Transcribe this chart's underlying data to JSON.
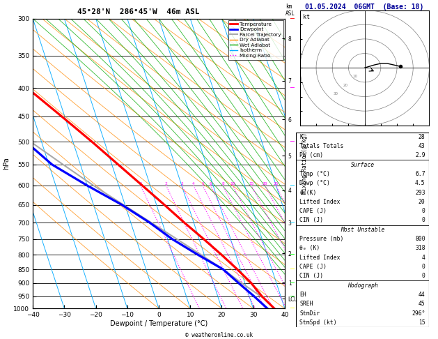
{
  "title_center": "45°28'N  286°45'W  46m ASL",
  "title_right": "01.05.2024  06GMT  (Base: 18)",
  "xlabel": "Dewpoint / Temperature (°C)",
  "xmin": -40,
  "xmax": 40,
  "pmin": 300,
  "pmax": 1000,
  "skew": 30.0,
  "temp_color": "#ff0000",
  "dewp_color": "#0000ff",
  "parcel_color": "#aaaaaa",
  "dry_adiabat_color": "#ff8800",
  "wet_adiabat_color": "#00aa00",
  "isotherm_color": "#00aaff",
  "mixing_ratio_color": "#ff00ff",
  "pressure_labels": [
    300,
    350,
    400,
    450,
    500,
    550,
    600,
    650,
    700,
    750,
    800,
    850,
    900,
    950,
    1000
  ],
  "km_labels": [
    "8",
    "7",
    "6",
    "5",
    "4",
    "3",
    "2",
    "1",
    "LCL"
  ],
  "km_pressures": [
    326,
    388,
    456,
    530,
    612,
    700,
    795,
    898,
    960
  ],
  "temp_p": [
    1000,
    950,
    900,
    850,
    800,
    750,
    700,
    650,
    600,
    550,
    500,
    450,
    400,
    350,
    300
  ],
  "temp_t": [
    6.7,
    4.0,
    2.0,
    -1.0,
    -4.5,
    -8.5,
    -13.0,
    -17.5,
    -22.5,
    -28.0,
    -34.0,
    -41.0,
    -49.0,
    -57.5,
    -58.0
  ],
  "dewp_p": [
    1000,
    950,
    900,
    850,
    800,
    750,
    700,
    650,
    600,
    550,
    500,
    450,
    400,
    350,
    300
  ],
  "dewp_t": [
    4.5,
    1.5,
    -2.0,
    -5.5,
    -12.0,
    -18.5,
    -24.0,
    -31.0,
    -40.0,
    -49.0,
    -55.0,
    -60.0,
    -65.0,
    -68.0,
    -70.0
  ],
  "parcel_p": [
    1000,
    960,
    900,
    850,
    800,
    750,
    700,
    650,
    600,
    550,
    500,
    450,
    400,
    350,
    300
  ],
  "parcel_t": [
    6.7,
    4.5,
    -1.0,
    -5.5,
    -11.0,
    -17.0,
    -23.5,
    -30.5,
    -38.0,
    -45.5,
    -53.5,
    -61.5,
    -70.0,
    -79.0,
    -87.0
  ],
  "mixing_ratios": [
    1,
    2,
    3,
    4,
    5,
    6,
    8,
    10,
    15,
    20,
    25
  ],
  "stats_K": 28,
  "stats_TT": 43,
  "stats_PW": "2.9",
  "stats_sfc_temp": "6.7",
  "stats_sfc_dewp": "4.5",
  "stats_sfc_thetae": 293,
  "stats_sfc_LI": 20,
  "stats_sfc_CAPE": 0,
  "stats_sfc_CIN": 0,
  "stats_mu_press": 800,
  "stats_mu_thetae": 318,
  "stats_mu_LI": 4,
  "stats_mu_CAPE": 0,
  "stats_mu_CIN": 0,
  "stats_EH": 44,
  "stats_SREH": 45,
  "stats_StmDir": 296,
  "stats_StmSpd": 15,
  "hodo_u": [
    0,
    3,
    6,
    10,
    14,
    18,
    22
  ],
  "hodo_v": [
    0,
    1,
    2,
    3,
    3,
    2,
    1
  ],
  "wind_press": [
    1000,
    950,
    900,
    850,
    800,
    700,
    600,
    500,
    400,
    300
  ],
  "wind_colors": [
    "#ffff00",
    "#00ff00",
    "#00ff00",
    "#ffff00",
    "#00ff00",
    "#00ccff",
    "#00ccff",
    "#ff00ff",
    "#ff00ff",
    "#ff0000"
  ]
}
